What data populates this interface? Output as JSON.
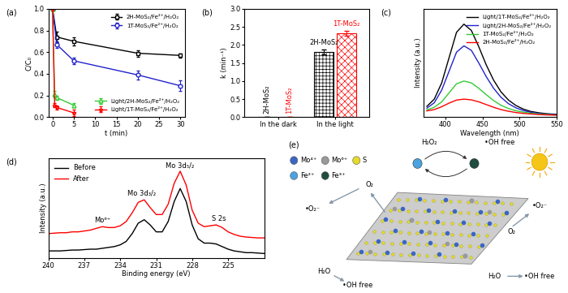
{
  "chart_data": [
    {
      "type": "line",
      "title": "(a)",
      "x_label": "t (min)",
      "y_label": "C/C₀",
      "xlim": [
        -1,
        31
      ],
      "xticks": [
        0,
        5,
        10,
        15,
        20,
        25,
        30
      ],
      "ylim": [
        0.0,
        1.0
      ],
      "yticks": [
        0.0,
        0.2,
        0.4,
        0.6,
        0.8,
        1.0
      ],
      "legend": "upper right",
      "series": [
        {
          "name": "2H-MoS₂/Fe²⁺/H₂O₂",
          "color": "#000000",
          "marker": "square",
          "x": [
            0,
            1,
            5,
            20,
            30
          ],
          "values": [
            1.0,
            0.74,
            0.7,
            0.59,
            0.57
          ],
          "errors": [
            0,
            0.05,
            0.04,
            0.03,
            0.02
          ]
        },
        {
          "name": "1T-MoS₂/Fe²⁺/H₂O₂",
          "color": "#2222cc",
          "marker": "circle",
          "x": [
            0,
            1,
            5,
            20,
            30
          ],
          "values": [
            1.0,
            0.67,
            0.52,
            0.39,
            0.29
          ],
          "errors": [
            0,
            0.03,
            0.03,
            0.04,
            0.05
          ]
        },
        {
          "name": "Light/2H-MoS₂/Fe²⁺/H₂O₂",
          "color": "#33cc33",
          "marker": "triangle",
          "x": [
            0,
            0.5,
            1,
            5
          ],
          "values": [
            1.0,
            0.21,
            0.18,
            0.11
          ],
          "errors": [
            0,
            0.03,
            0.02,
            0.02
          ]
        },
        {
          "name": "Light/1T-MoS₂/Fe²⁺/H₂O₂",
          "color": "#ff0000",
          "marker": "star",
          "x": [
            0,
            0.5,
            1,
            5
          ],
          "values": [
            1.0,
            0.11,
            0.09,
            0.04
          ],
          "errors": [
            0,
            0.02,
            0.02,
            0.03
          ]
        }
      ]
    },
    {
      "type": "bar",
      "title": "(b)",
      "y_label": "k (min⁻¹)",
      "categories": [
        "In the dark",
        "In the light"
      ],
      "ylim": [
        0.0,
        3.0
      ],
      "yticks": [
        0.0,
        0.5,
        1.0,
        1.5,
        2.0,
        2.5,
        3.0
      ],
      "series": [
        {
          "name": "2H-MoS₂",
          "color": "#000000",
          "values": [
            0.005,
            1.8
          ],
          "errors": [
            0,
            0.07
          ]
        },
        {
          "name": "1T-MoS₂",
          "color": "#ff0000",
          "values": [
            0.02,
            2.33
          ],
          "errors": [
            0,
            0.07
          ]
        }
      ]
    },
    {
      "type": "line",
      "title": "(c)",
      "x_label": "Wavelength (nm)",
      "y_label": "Intensity (a.u.)",
      "xlim": [
        370,
        550
      ],
      "xticks": [
        400,
        450,
        500,
        550
      ],
      "ylim": [
        0,
        600
      ],
      "tick_labels": "x",
      "legend": "upper right",
      "x": [
        375,
        385,
        395,
        405,
        415,
        425,
        435,
        445,
        455,
        465,
        475,
        485,
        495,
        505,
        515,
        525,
        535,
        545,
        550
      ],
      "series": [
        {
          "name": "Light/1T-MoS₂/Fe²⁺/H₂O₂",
          "color": "#000000",
          "values": [
            60,
            100,
            190,
            330,
            470,
            515,
            480,
            390,
            290,
            205,
            140,
            95,
            65,
            45,
            32,
            25,
            20,
            17,
            16
          ]
        },
        {
          "name": "Light/2H-MoS₂/Fe²⁺/H₂O₂",
          "color": "#2222cc",
          "values": [
            50,
            80,
            150,
            255,
            360,
            395,
            370,
            300,
            225,
            160,
            110,
            75,
            52,
            37,
            27,
            21,
            17,
            15,
            14
          ]
        },
        {
          "name": "1T-MoS₂/Fe²⁺/H₂O₂",
          "color": "#33cc33",
          "values": [
            40,
            55,
            85,
            135,
            185,
            200,
            190,
            160,
            125,
            92,
            66,
            48,
            36,
            28,
            22,
            18,
            15,
            13,
            12
          ]
        },
        {
          "name": "2H-MoS₂/Fe²⁺/H₂O₂",
          "color": "#ff0000",
          "values": [
            35,
            42,
            58,
            78,
            95,
            100,
            96,
            85,
            70,
            55,
            42,
            33,
            26,
            21,
            18,
            15,
            13,
            12,
            11
          ]
        }
      ]
    },
    {
      "type": "line",
      "title": "(d)",
      "x_label": "Binding energy (eV)",
      "y_label": "Intensity (a.u.)",
      "xlim": [
        240,
        222
      ],
      "xticks": [
        240,
        237,
        234,
        231,
        228,
        225
      ],
      "ylim": [
        0,
        1.15
      ],
      "tick_labels": "x",
      "legend": "upper left",
      "x": [
        240,
        239.5,
        239,
        238.5,
        238,
        237.5,
        237,
        236.5,
        236,
        235.5,
        235,
        234.5,
        234,
        233.5,
        233,
        232.5,
        232,
        231.5,
        231,
        230.5,
        230,
        229.5,
        229,
        228.5,
        228,
        227.5,
        227,
        226.5,
        226,
        225.5,
        225,
        224.5,
        224,
        223.5,
        223,
        222.5,
        222
      ],
      "series": [
        {
          "name": "Before",
          "color": "#000000",
          "values": [
            0.08,
            0.08,
            0.08,
            0.085,
            0.09,
            0.09,
            0.095,
            0.1,
            0.1,
            0.11,
            0.12,
            0.13,
            0.15,
            0.19,
            0.28,
            0.4,
            0.44,
            0.38,
            0.3,
            0.3,
            0.42,
            0.65,
            0.8,
            0.65,
            0.38,
            0.22,
            0.17,
            0.17,
            0.16,
            0.13,
            0.1,
            0.08,
            0.07,
            0.06,
            0.06,
            0.055,
            0.05
          ]
        },
        {
          "name": "After",
          "color": "#ff0000",
          "values": [
            0.28,
            0.285,
            0.29,
            0.29,
            0.3,
            0.3,
            0.31,
            0.32,
            0.34,
            0.36,
            0.35,
            0.35,
            0.37,
            0.42,
            0.52,
            0.64,
            0.67,
            0.58,
            0.5,
            0.5,
            0.62,
            0.86,
            1.0,
            0.84,
            0.55,
            0.4,
            0.36,
            0.37,
            0.38,
            0.35,
            0.3,
            0.27,
            0.25,
            0.24,
            0.235,
            0.23,
            0.23
          ]
        }
      ],
      "annotations": [
        {
          "text": "Mo⁶⁺",
          "x": 235.5,
          "y": 0.39
        },
        {
          "text": "Mo 3d₃/₂",
          "x": 232.2,
          "y": 0.7
        },
        {
          "text": "Mo 3d₅/₂",
          "x": 229.0,
          "y": 1.02
        },
        {
          "text": "S 2s",
          "x": 225.8,
          "y": 0.41
        }
      ]
    }
  ],
  "diagram": {
    "title": "(e)",
    "legend": [
      {
        "label": "Mo⁴⁺",
        "color": "#3a66c4"
      },
      {
        "label": "Mo⁶⁺",
        "color": "#9a9a9a"
      },
      {
        "label": "S",
        "color": "#e6dc28"
      },
      {
        "label": "Fe²⁺",
        "color": "#4aa3df"
      },
      {
        "label": "Fe³⁺",
        "color": "#1f4d3f"
      }
    ],
    "labels": [
      "H₂O₂",
      "•OH free",
      "•O₂⁻",
      "O₂",
      "•O₂⁻",
      "O₂",
      "H₂O",
      "•OH free",
      "H₂O",
      "•OH free"
    ]
  }
}
